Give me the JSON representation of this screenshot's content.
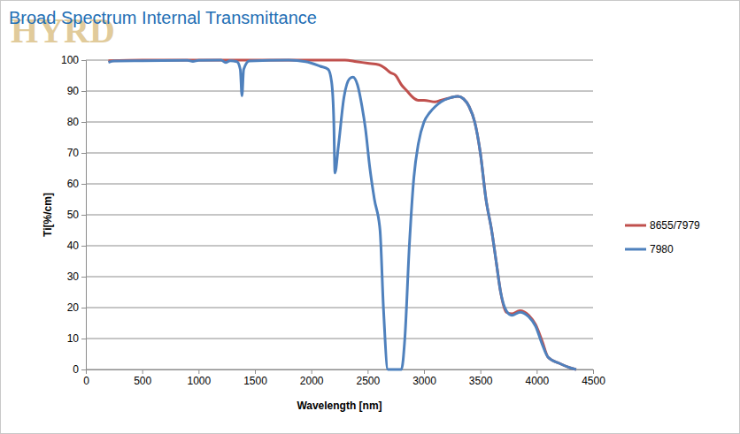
{
  "chart_data": {
    "type": "line",
    "title": "Broad Spectrum Internal Transmittance",
    "annotations": [
      "HYRD"
    ],
    "x_label": "Wavelength [nm]",
    "y_label": "Ti[%/cm]",
    "xlim": [
      0,
      4500
    ],
    "xticks": [
      0,
      500,
      1000,
      1500,
      2000,
      2500,
      3000,
      3500,
      4000,
      4500
    ],
    "ylim": [
      0,
      100
    ],
    "yticks": [
      0,
      10,
      20,
      30,
      40,
      50,
      60,
      70,
      80,
      90,
      100
    ],
    "grid": true,
    "legend": "right",
    "series": [
      {
        "name": "8655/7979",
        "color": "#c0504d",
        "x": [
          200,
          500,
          1000,
          1500,
          2000,
          2300,
          2400,
          2500,
          2600,
          2650,
          2700,
          2750,
          2800,
          2850,
          2900,
          2950,
          3000,
          3100,
          3150,
          3200,
          3250,
          3300,
          3350,
          3400,
          3450,
          3500,
          3550,
          3600,
          3640,
          3680,
          3730,
          3780,
          3850,
          3930,
          3990,
          4050,
          4100,
          4200,
          4300,
          4350
        ],
        "values": [
          99.8,
          100,
          100,
          100,
          100,
          100,
          99.5,
          99,
          98.5,
          97.5,
          96,
          95,
          92,
          90,
          88,
          87,
          87,
          86.5,
          87,
          87.5,
          88,
          88.3,
          87.5,
          85,
          80,
          70,
          55,
          45,
          35,
          25,
          18.5,
          18,
          19,
          17.5,
          14.5,
          9,
          4,
          2,
          0.5,
          0
        ]
      },
      {
        "name": "7980",
        "color": "#4f81bd",
        "x": [
          200,
          250,
          500,
          900,
          950,
          1000,
          1200,
          1240,
          1280,
          1340,
          1370,
          1385,
          1400,
          1450,
          1800,
          1950,
          2080,
          2150,
          2180,
          2200,
          2210,
          2240,
          2290,
          2340,
          2370,
          2410,
          2450,
          2480,
          2520,
          2560,
          2610,
          2640,
          2680,
          2800,
          2830,
          2870,
          2910,
          2950,
          3000,
          3050,
          3100,
          3150,
          3250,
          3300,
          3350,
          3400,
          3450,
          3500,
          3550,
          3600,
          3640,
          3680,
          3730,
          3780,
          3850,
          3930,
          3990,
          4050,
          4100,
          4200,
          4300,
          4350
        ],
        "values": [
          99.3,
          99.7,
          99.8,
          99.9,
          99.6,
          99.9,
          100,
          99.2,
          99.8,
          99.5,
          97,
          88.5,
          97,
          99.7,
          100,
          99.5,
          98,
          97,
          93,
          80,
          63.5,
          72,
          88,
          94,
          94.5,
          92,
          85,
          78,
          65,
          55,
          45,
          20,
          0,
          0,
          10,
          40,
          62,
          73,
          80,
          83,
          85,
          86.5,
          88,
          88.3,
          87.5,
          85,
          80,
          70,
          55,
          45,
          35,
          25,
          19,
          17.5,
          18.5,
          17,
          14,
          8,
          4,
          2,
          0.5,
          0
        ]
      }
    ]
  }
}
